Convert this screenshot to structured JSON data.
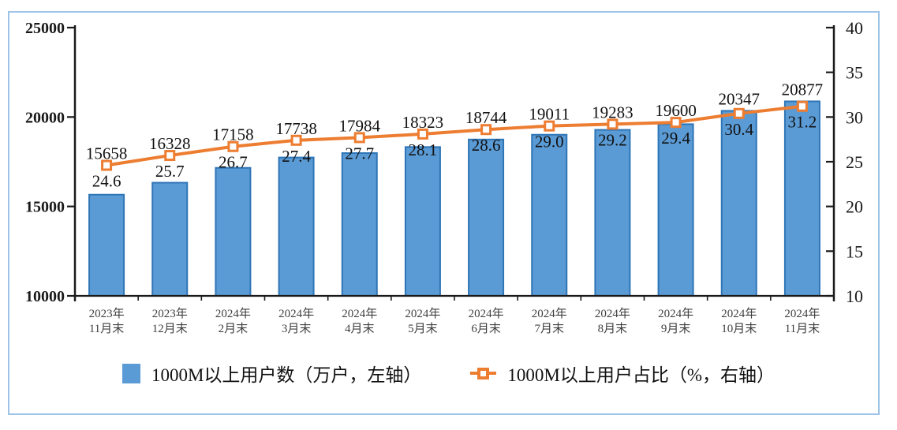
{
  "colors": {
    "frame_border": "#9DC3E6",
    "bar_fill": "#5B9BD5",
    "bar_border": "#2E75B6",
    "line": "#ED7D31",
    "marker_fill": "#FFFFFF",
    "axis": "#1a1a1a",
    "data_label": "#111111",
    "x_label": "#3f3f3f"
  },
  "chart_data": {
    "type": "bar",
    "subtype": "bar+line combo, dual axis",
    "grid": "off",
    "legend_position": "bottom",
    "categories": [
      {
        "l1": "2023年",
        "l2": "11月末"
      },
      {
        "l1": "2023年",
        "l2": "12月末"
      },
      {
        "l1": "2024年",
        "l2": "2月末"
      },
      {
        "l1": "2024年",
        "l2": "3月末"
      },
      {
        "l1": "2024年",
        "l2": "4月末"
      },
      {
        "l1": "2024年",
        "l2": "5月末"
      },
      {
        "l1": "2024年",
        "l2": "6月末"
      },
      {
        "l1": "2024年",
        "l2": "7月末"
      },
      {
        "l1": "2024年",
        "l2": "8月末"
      },
      {
        "l1": "2024年",
        "l2": "9月末"
      },
      {
        "l1": "2024年",
        "l2": "10月末"
      },
      {
        "l1": "2024年",
        "l2": "11月末"
      }
    ],
    "series": [
      {
        "name": "1000M以上用户数（万户，左轴）",
        "type": "bar",
        "axis": "left",
        "values": [
          15658,
          16328,
          17158,
          17738,
          17984,
          18323,
          18744,
          19011,
          19283,
          19600,
          20347,
          20877
        ],
        "labels": [
          "15658",
          "16328",
          "17158",
          "17738",
          "17984",
          "18323",
          "18744",
          "19011",
          "19283",
          "19600",
          "20347",
          "20877"
        ]
      },
      {
        "name": "1000M以上用户占比（%，右轴）",
        "type": "line",
        "axis": "right",
        "values": [
          24.6,
          25.7,
          26.7,
          27.4,
          27.7,
          28.1,
          28.6,
          29.0,
          29.2,
          29.4,
          30.4,
          31.2
        ],
        "labels": [
          "24.6",
          "25.7",
          "26.7",
          "27.4",
          "27.7",
          "28.1",
          "28.6",
          "29.0",
          "29.2",
          "29.4",
          "30.4",
          "31.2"
        ]
      }
    ],
    "left_axis": {
      "min": 10000,
      "max": 25000,
      "step": 5000,
      "ticks": [
        "10000",
        "15000",
        "20000",
        "25000"
      ]
    },
    "right_axis": {
      "min": 10,
      "max": 40,
      "step": 5,
      "ticks": [
        "10",
        "15",
        "20",
        "25",
        "30",
        "35",
        "40"
      ]
    }
  }
}
